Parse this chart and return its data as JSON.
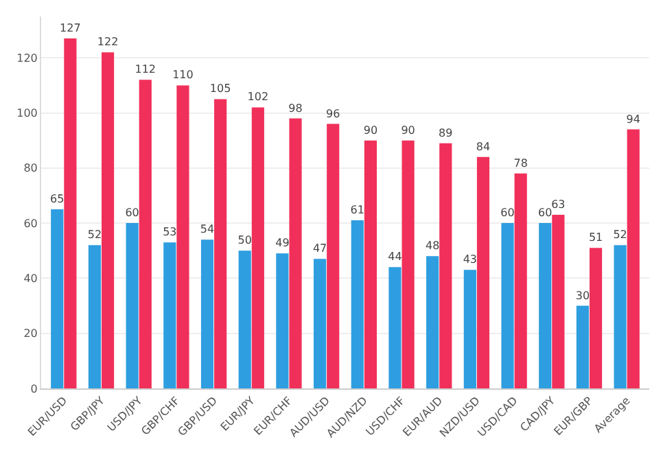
{
  "chart_data": {
    "type": "bar",
    "categories": [
      "EUR/USD",
      "GBP/JPY",
      "USD/JPY",
      "GBP/CHF",
      "GBP/USD",
      "EUR/JPY",
      "EUR/CHF",
      "AUD/USD",
      "AUD/NZD",
      "USD/CHF",
      "EUR/AUD",
      "NZD/USD",
      "USD/CAD",
      "CAD/JPY",
      "EUR/GBP",
      "Average"
    ],
    "series": [
      {
        "color": "#2e9ee0",
        "values": [
          65,
          52,
          60,
          53,
          54,
          50,
          49,
          47,
          61,
          44,
          48,
          43,
          60,
          60,
          30,
          52
        ]
      },
      {
        "color": "#f0305a",
        "values": [
          127,
          122,
          112,
          110,
          105,
          102,
          98,
          96,
          90,
          90,
          89,
          84,
          78,
          63,
          51,
          94
        ]
      }
    ],
    "ylim": [
      0,
      135
    ],
    "yticks": [
      0,
      20,
      40,
      60,
      80,
      100,
      120
    ],
    "grid": "y",
    "data_labels": true
  }
}
